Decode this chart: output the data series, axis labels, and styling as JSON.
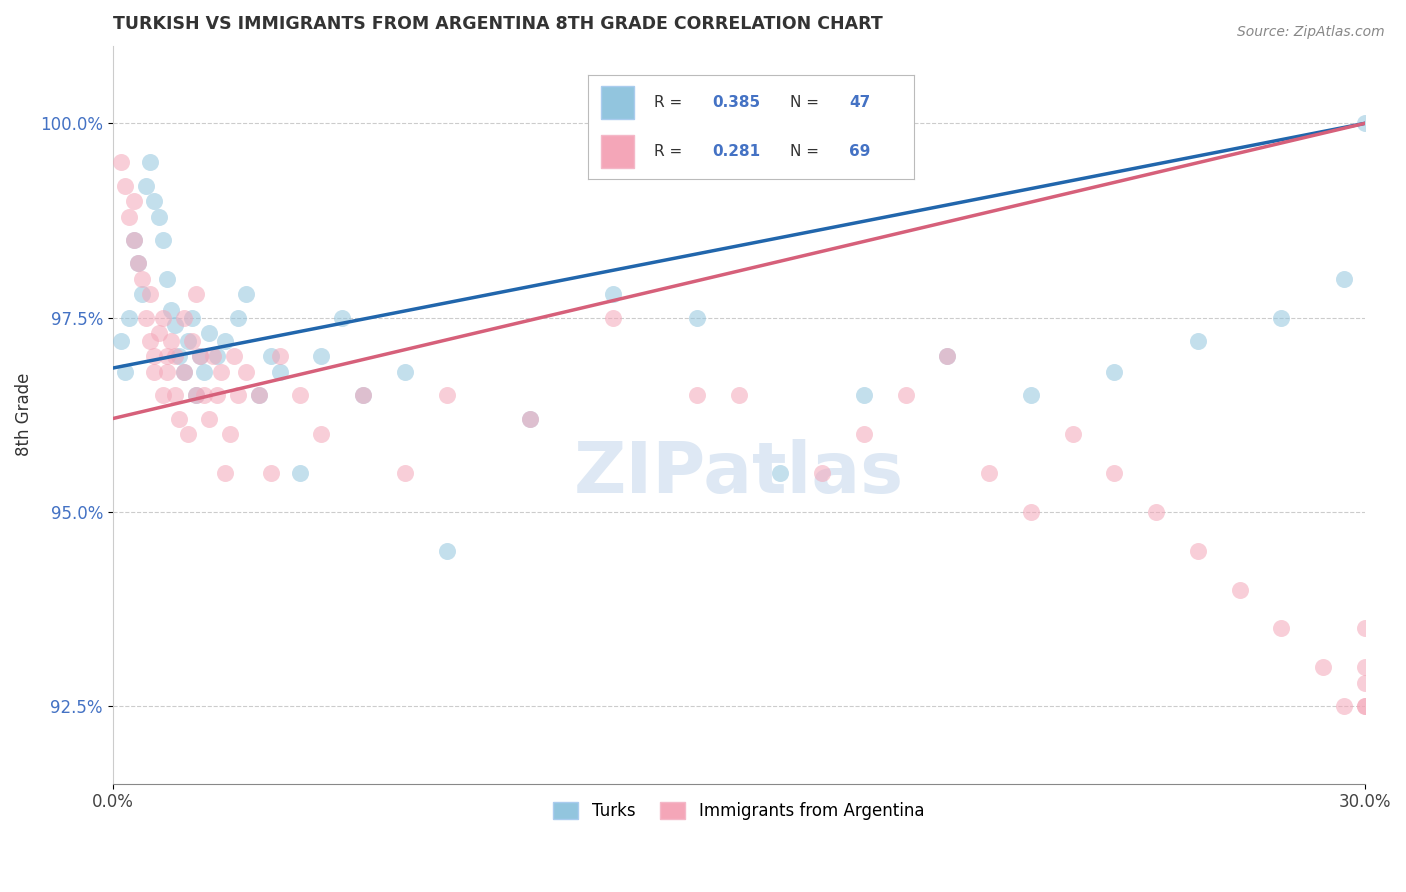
{
  "title": "TURKISH VS IMMIGRANTS FROM ARGENTINA 8TH GRADE CORRELATION CHART",
  "source": "Source: ZipAtlas.com",
  "ylabel": "8th Grade",
  "xlim": [
    0.0,
    30.0
  ],
  "ylim": [
    91.5,
    101.0
  ],
  "yticks": [
    92.5,
    95.0,
    97.5,
    100.0
  ],
  "yticklabels": [
    "92.5%",
    "95.0%",
    "97.5%",
    "100.0%"
  ],
  "blue_color": "#92c5de",
  "pink_color": "#f4a6b8",
  "blue_line_color": "#2166ac",
  "pink_line_color": "#d6607a",
  "r_blue": 0.385,
  "n_blue": 47,
  "r_pink": 0.281,
  "n_pink": 69,
  "turks_x": [
    0.2,
    0.3,
    0.4,
    0.5,
    0.6,
    0.7,
    0.8,
    0.9,
    1.0,
    1.1,
    1.2,
    1.3,
    1.4,
    1.5,
    1.6,
    1.7,
    1.8,
    1.9,
    2.0,
    2.1,
    2.2,
    2.3,
    2.5,
    2.7,
    3.0,
    3.2,
    3.5,
    3.8,
    4.0,
    4.5,
    5.0,
    5.5,
    6.0,
    7.0,
    8.0,
    10.0,
    12.0,
    14.0,
    16.0,
    18.0,
    20.0,
    22.0,
    24.0,
    26.0,
    28.0,
    29.5,
    30.0
  ],
  "turks_y": [
    97.2,
    96.8,
    97.5,
    98.5,
    98.2,
    97.8,
    99.2,
    99.5,
    99.0,
    98.8,
    98.5,
    98.0,
    97.6,
    97.4,
    97.0,
    96.8,
    97.2,
    97.5,
    96.5,
    97.0,
    96.8,
    97.3,
    97.0,
    97.2,
    97.5,
    97.8,
    96.5,
    97.0,
    96.8,
    95.5,
    97.0,
    97.5,
    96.5,
    96.8,
    94.5,
    96.2,
    97.8,
    97.5,
    95.5,
    96.5,
    97.0,
    96.5,
    96.8,
    97.2,
    97.5,
    98.0,
    100.0
  ],
  "argentina_x": [
    0.2,
    0.3,
    0.4,
    0.5,
    0.5,
    0.6,
    0.7,
    0.8,
    0.9,
    0.9,
    1.0,
    1.0,
    1.1,
    1.2,
    1.2,
    1.3,
    1.3,
    1.4,
    1.5,
    1.5,
    1.6,
    1.7,
    1.7,
    1.8,
    1.9,
    2.0,
    2.0,
    2.1,
    2.2,
    2.3,
    2.4,
    2.5,
    2.6,
    2.7,
    2.8,
    2.9,
    3.0,
    3.2,
    3.5,
    3.8,
    4.0,
    4.5,
    5.0,
    6.0,
    7.0,
    8.0,
    10.0,
    12.0,
    14.0,
    15.0,
    17.0,
    18.0,
    19.0,
    20.0,
    21.0,
    22.0,
    23.0,
    24.0,
    25.0,
    26.0,
    27.0,
    28.0,
    29.0,
    29.5,
    30.0,
    30.0,
    30.0,
    30.0,
    30.0
  ],
  "argentina_y": [
    99.5,
    99.2,
    98.8,
    99.0,
    98.5,
    98.2,
    98.0,
    97.5,
    97.2,
    97.8,
    97.0,
    96.8,
    97.3,
    97.5,
    96.5,
    97.0,
    96.8,
    97.2,
    96.5,
    97.0,
    96.2,
    96.8,
    97.5,
    96.0,
    97.2,
    96.5,
    97.8,
    97.0,
    96.5,
    96.2,
    97.0,
    96.5,
    96.8,
    95.5,
    96.0,
    97.0,
    96.5,
    96.8,
    96.5,
    95.5,
    97.0,
    96.5,
    96.0,
    96.5,
    95.5,
    96.5,
    96.2,
    97.5,
    96.5,
    96.5,
    95.5,
    96.0,
    96.5,
    97.0,
    95.5,
    95.0,
    96.0,
    95.5,
    95.0,
    94.5,
    94.0,
    93.5,
    93.0,
    92.5,
    93.0,
    92.5,
    93.5,
    92.5,
    92.8
  ],
  "blue_line_x0": 0.0,
  "blue_line_y0": 96.85,
  "blue_line_x1": 30.0,
  "blue_line_y1": 100.0,
  "pink_line_x0": 0.0,
  "pink_line_y0": 96.2,
  "pink_line_x1": 30.0,
  "pink_line_y1": 100.0
}
